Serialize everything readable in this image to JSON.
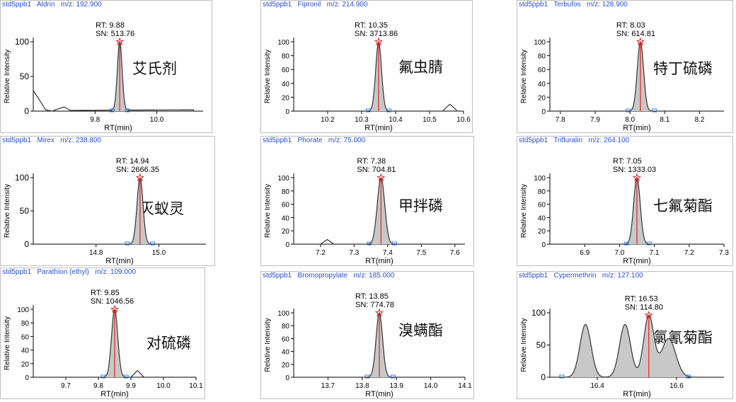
{
  "colors": {
    "header": "#2b4fd6",
    "fill": "#c8c8c8",
    "line": "#333333",
    "marker": "#e02020",
    "baseline": "#3a78d0"
  },
  "chart_data": [
    {
      "type": "line",
      "label": "std5ppb1",
      "compound": "Aldrin",
      "mz_label": "m/z:",
      "mz": "192.900",
      "rt_label": "RT:",
      "rt": 9.88,
      "sn_label": "SN:",
      "sn": "513.76",
      "name_cn": "艾氏剂",
      "xlabel": "RT(min)",
      "ylabel": "Relative Intensity",
      "xlim": [
        9.6,
        10.15
      ],
      "ylim": [
        0,
        100
      ],
      "xticks": [
        9.8,
        10.0
      ],
      "yticks": [
        0,
        50,
        100
      ],
      "peaks": [
        {
          "c": 9.88,
          "h": 100,
          "w": 0.0075
        }
      ],
      "extra": [
        [
          9.6,
          30
        ],
        [
          9.64,
          2
        ],
        [
          9.66,
          0
        ],
        [
          9.7,
          6
        ],
        [
          9.72,
          1
        ],
        [
          10.12,
          2
        ]
      ],
      "base": [
        9.855,
        9.905
      ]
    },
    {
      "type": "line",
      "label": "std5ppb1",
      "compound": "Fipronil",
      "mz_label": "m/z:",
      "mz": "214.900",
      "rt_label": "RT:",
      "rt": 10.35,
      "sn_label": "SN:",
      "sn": "3713.86",
      "name_cn": "氟虫腈",
      "xlabel": "RT(min)",
      "ylabel": "Relative Intensity",
      "xlim": [
        10.1,
        10.6
      ],
      "ylim": [
        0,
        100
      ],
      "xticks": [
        10.2,
        10.3,
        10.4,
        10.5,
        10.6
      ],
      "yticks": [
        0,
        20,
        40,
        60,
        80,
        100
      ],
      "peaks": [
        {
          "c": 10.35,
          "h": 100,
          "w": 0.0085
        }
      ],
      "extra": [
        [
          10.54,
          1
        ],
        [
          10.56,
          10
        ],
        [
          10.58,
          1
        ]
      ],
      "base": [
        10.32,
        10.38
      ]
    },
    {
      "type": "line",
      "label": "std5ppb1",
      "compound": "Terbufos",
      "mz_label": "m/z:",
      "mz": "128.900",
      "rt_label": "RT:",
      "rt": 8.03,
      "sn_label": "SN:",
      "sn": "614.81",
      "name_cn": "特丁硫磷",
      "xlabel": "RT(min)",
      "ylabel": "Relative Intensity",
      "xlim": [
        7.77,
        8.27
      ],
      "ylim": [
        0,
        100
      ],
      "xticks": [
        7.8,
        7.9,
        8.0,
        8.1,
        8.2
      ],
      "yticks": [
        0,
        20,
        40,
        60,
        80,
        100
      ],
      "peaks": [
        {
          "c": 8.03,
          "h": 100,
          "w": 0.009
        }
      ],
      "extra": [],
      "base": [
        7.995,
        8.07
      ]
    },
    {
      "type": "line",
      "label": "std5ppb1",
      "compound": "Mirex",
      "mz_label": "m/z:",
      "mz": "238.800",
      "rt_label": "RT:",
      "rt": 14.94,
      "sn_label": "SN:",
      "sn": "2666.35",
      "name_cn": "灭蚁灵",
      "xlabel": "RT(min)",
      "ylabel": "Relative Intensity",
      "xlim": [
        14.6,
        15.15
      ],
      "ylim": [
        0,
        100
      ],
      "xticks": [
        14.8,
        15.0
      ],
      "yticks": [
        0,
        50,
        100
      ],
      "peaks": [
        {
          "c": 14.94,
          "h": 100,
          "w": 0.0095
        }
      ],
      "extra": [],
      "base": [
        14.9,
        14.98
      ]
    },
    {
      "type": "line",
      "label": "std5ppb1",
      "compound": "Phorate",
      "mz_label": "m/z:",
      "mz": "75.000",
      "rt_label": "RT:",
      "rt": 7.38,
      "sn_label": "SN:",
      "sn": "704.81",
      "name_cn": "甲拌磷",
      "xlabel": "RT(min)",
      "ylabel": "Relative Intensity",
      "xlim": [
        7.12,
        7.63
      ],
      "ylim": [
        0,
        100
      ],
      "xticks": [
        7.2,
        7.3,
        7.4,
        7.5,
        7.6
      ],
      "yticks": [
        0,
        20,
        40,
        60,
        80,
        100
      ],
      "peaks": [
        {
          "c": 7.38,
          "h": 100,
          "w": 0.011
        }
      ],
      "extra": [
        [
          7.2,
          0
        ],
        [
          7.22,
          7
        ],
        [
          7.24,
          0
        ]
      ],
      "base": [
        7.345,
        7.42
      ]
    },
    {
      "type": "line",
      "label": "std5ppb1",
      "compound": "Trifluralin",
      "mz_label": "m/z:",
      "mz": "264.100",
      "rt_label": "RT:",
      "rt": 7.05,
      "sn_label": "SN:",
      "sn": "1333.03",
      "name_cn": "七氟菊酯",
      "xlabel": "RT(min)",
      "ylabel": "Relative Intensity",
      "xlim": [
        6.8,
        7.3
      ],
      "ylim": [
        0,
        100
      ],
      "xticks": [
        6.9,
        7.0,
        7.1,
        7.2,
        7.3
      ],
      "yticks": [
        0,
        20,
        40,
        60,
        80,
        100
      ],
      "peaks": [
        {
          "c": 7.05,
          "h": 100,
          "w": 0.0095
        }
      ],
      "extra": [],
      "base": [
        7.02,
        7.085
      ]
    },
    {
      "type": "line",
      "label": "std5ppb1",
      "compound": "Parathion (ethyl)",
      "mz_label": "m/z:",
      "mz": "109.000",
      "rt_label": "RT:",
      "rt": 9.85,
      "sn_label": "SN:",
      "sn": "1046.56",
      "name_cn": "对硫磷",
      "xlabel": "RT(min)",
      "ylabel": "Relative Intensity",
      "xlim": [
        9.6,
        10.1
      ],
      "ylim": [
        0,
        100
      ],
      "xticks": [
        9.7,
        9.8,
        9.9,
        10.0,
        10.1
      ],
      "yticks": [
        0,
        20,
        40,
        60,
        80,
        100
      ],
      "peaks": [
        {
          "c": 9.85,
          "h": 100,
          "w": 0.0095
        }
      ],
      "extra": [
        [
          9.9,
          0
        ],
        [
          9.92,
          10
        ],
        [
          9.94,
          0
        ]
      ],
      "base": [
        9.815,
        9.885
      ]
    },
    {
      "type": "line",
      "label": "std5ppb1",
      "compound": "Bromopropylate",
      "mz_label": "m/z:",
      "mz": "185.000",
      "rt_label": "RT:",
      "rt": 13.85,
      "sn_label": "SN:",
      "sn": "774.78",
      "name_cn": "溴螨酯",
      "xlabel": "RT(min)",
      "ylabel": "Relative Intensity",
      "xlim": [
        13.6,
        14.1
      ],
      "ylim": [
        0,
        100
      ],
      "xticks": [
        13.7,
        13.8,
        13.9,
        14.0,
        14.1
      ],
      "yticks": [
        0,
        20,
        40,
        60,
        80,
        100
      ],
      "peaks": [
        {
          "c": 13.85,
          "h": 100,
          "w": 0.0095
        }
      ],
      "extra": [],
      "base": [
        13.815,
        13.89
      ]
    },
    {
      "type": "line",
      "label": "std5ppb1",
      "compound": "Cypermethrin",
      "mz_label": "m/z:",
      "mz": "127.100",
      "rt_label": "RT:",
      "rt": 16.53,
      "sn_label": "SN:",
      "sn": "114.80",
      "name_cn": "氯氰菊酯",
      "xlabel": "RT(min)",
      "ylabel": "Relative Intensity",
      "xlim": [
        16.28,
        16.72
      ],
      "ylim": [
        0,
        100
      ],
      "xticks": [
        16.4,
        16.6
      ],
      "yticks": [
        0,
        50,
        100
      ],
      "peaks": [
        {
          "c": 16.37,
          "h": 82,
          "w": 0.014
        },
        {
          "c": 16.47,
          "h": 82,
          "w": 0.014
        },
        {
          "c": 16.53,
          "h": 95,
          "w": 0.013
        },
        {
          "c": 16.58,
          "h": 60,
          "w": 0.018
        }
      ],
      "extra": [],
      "base": [
        16.31,
        16.63
      ]
    }
  ]
}
